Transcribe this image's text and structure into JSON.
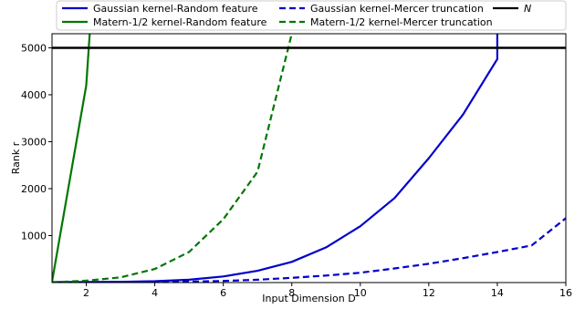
{
  "chart_data": {
    "type": "line",
    "xlabel": "Input Dimension D",
    "ylabel": "Rank r",
    "xlim": [
      1,
      16
    ],
    "ylim": [
      0,
      5300
    ],
    "xticks": [
      2,
      4,
      6,
      8,
      10,
      12,
      14,
      16
    ],
    "yticks": [
      1000,
      2000,
      3000,
      4000,
      5000
    ],
    "grid": false,
    "legend_position": "top",
    "series": [
      {
        "name": "Gaussian kernel-Random feature",
        "color": "#0000cc",
        "dash": "solid",
        "x": [
          1,
          2,
          3,
          4,
          5,
          6,
          7,
          8,
          9,
          10,
          11,
          12,
          13,
          14,
          14
        ],
        "y": [
          10,
          12,
          16,
          30,
          60,
          130,
          250,
          440,
          750,
          1200,
          1800,
          2650,
          3580,
          4760,
          5300
        ]
      },
      {
        "name": "Matern-1/2 kernel-Random feature",
        "color": "#007700",
        "dash": "solid",
        "x": [
          1,
          2,
          2.1
        ],
        "y": [
          20,
          4200,
          5300
        ]
      },
      {
        "name": "Gaussian kernel-Mercer truncation",
        "color": "#0000cc",
        "dash": "dashed",
        "x": [
          1,
          2,
          3,
          4,
          5,
          6,
          7,
          8,
          9,
          10,
          11,
          12,
          13,
          14,
          15,
          16
        ],
        "y": [
          2,
          3,
          5,
          10,
          20,
          35,
          60,
          100,
          150,
          210,
          300,
          400,
          520,
          650,
          790,
          1370
        ]
      },
      {
        "name": "Matern-1/2 kernel-Mercer truncation",
        "color": "#007700",
        "dash": "dashed",
        "x": [
          1,
          2,
          3,
          4,
          5,
          6,
          7,
          8
        ],
        "y": [
          5,
          40,
          110,
          290,
          650,
          1350,
          2360,
          5300
        ]
      },
      {
        "name": "N",
        "color": "#000000",
        "dash": "solid",
        "x": [
          1,
          16
        ],
        "y": [
          5000,
          5000
        ]
      }
    ]
  }
}
